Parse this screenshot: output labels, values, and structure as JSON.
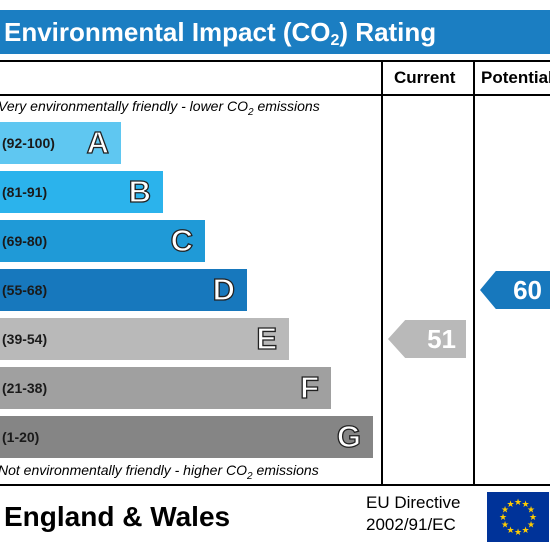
{
  "title": {
    "main": "Environmental Impact (CO",
    "sub": "2",
    "end": ") Rating"
  },
  "columns": {
    "current": "Current",
    "potential": "Potential"
  },
  "top_note": {
    "main": "Very environmentally friendly - lower CO",
    "sub": "2",
    "end": " emissions"
  },
  "bottom_note": {
    "main": "Not environmentally friendly - higher CO",
    "sub": "2",
    "end": " emissions"
  },
  "footer": {
    "region": "England & Wales",
    "directive_line1": "EU Directive",
    "directive_line2": "2002/91/EC"
  },
  "colors": {
    "title_bar": "#1b7ec2",
    "eu_flag": "#003399",
    "eu_stars": "#ffcc00"
  },
  "eu_flag_icon": "eu-flag-icon",
  "chart_data": {
    "type": "bar",
    "categories": [
      "A",
      "B",
      "C",
      "D",
      "E",
      "F",
      "G"
    ],
    "ranges": [
      "(92-100)",
      "(81-91)",
      "(69-80)",
      "(55-68)",
      "(39-54)",
      "(21-38)",
      "(1-20)"
    ],
    "band_colors": [
      "#5fc7f1",
      "#2bb3ec",
      "#1f9ad7",
      "#1778bd",
      "#b9b9b9",
      "#a0a0a0",
      "#858585"
    ],
    "current": {
      "value": 51,
      "band": "E",
      "color": "#b9b9b9"
    },
    "potential": {
      "value": 60,
      "band": "D",
      "color": "#1778bd"
    }
  }
}
